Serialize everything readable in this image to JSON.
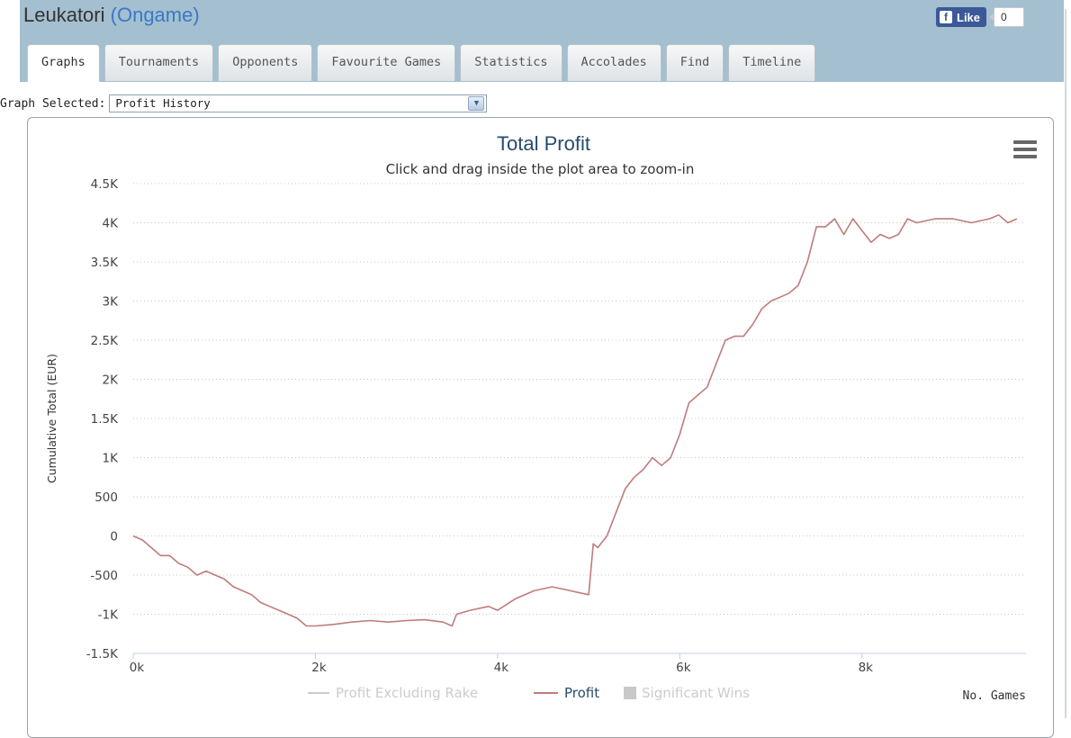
{
  "header": {
    "player": "Leukatori",
    "network": "(Ongame)",
    "like_label": "Like",
    "like_count": "0"
  },
  "tabs": [
    {
      "label": "Graphs",
      "active": true
    },
    {
      "label": "Tournaments"
    },
    {
      "label": "Opponents"
    },
    {
      "label": "Favourite Games"
    },
    {
      "label": "Statistics"
    },
    {
      "label": "Accolades"
    },
    {
      "label": "Find"
    },
    {
      "label": "Timeline"
    }
  ],
  "graph_select": {
    "label": "Graph Selected:",
    "value": "Profit History"
  },
  "colors": {
    "profit": "#bf7b7b",
    "profit_excl_rake": "#cccccc",
    "significant_wins": "#c8c8c8",
    "title": "#274b6d",
    "band": "#a4bfcf"
  },
  "icons": {
    "menu": "hamburger-menu-icon",
    "facebook": "facebook-f-icon",
    "dropdown": "chevron-down-icon"
  },
  "chart_data": {
    "type": "line",
    "title": "Total Profit",
    "subtitle": "Click and drag inside the plot area to zoom-in",
    "xlabel": "No. Games",
    "ylabel": "Cumulative Total (EUR)",
    "xlim": [
      0,
      9800
    ],
    "ylim": [
      -1500,
      4500
    ],
    "x_ticks": [
      "0k",
      "2k",
      "4k",
      "6k",
      "8k"
    ],
    "y_ticks": [
      "4.5K",
      "4K",
      "3.5K",
      "3K",
      "2.5K",
      "2K",
      "1.5K",
      "1K",
      "500",
      "0",
      "-500",
      "-1K",
      "-1.5K"
    ],
    "grid": true,
    "legend_position": "bottom",
    "legend": [
      {
        "name": "Profit Excluding Rake",
        "visible": false
      },
      {
        "name": "Profit",
        "visible": true
      },
      {
        "name": "Significant Wins",
        "visible": false
      }
    ],
    "series": [
      {
        "name": "Profit",
        "x": [
          0,
          100,
          200,
          300,
          400,
          500,
          600,
          700,
          800,
          900,
          1000,
          1100,
          1200,
          1300,
          1400,
          1500,
          1600,
          1700,
          1800,
          1900,
          2000,
          2200,
          2400,
          2600,
          2800,
          3000,
          3200,
          3400,
          3500,
          3550,
          3700,
          3900,
          4000,
          4200,
          4400,
          4600,
          4800,
          5000,
          5050,
          5100,
          5200,
          5300,
          5400,
          5500,
          5600,
          5700,
          5800,
          5900,
          6000,
          6100,
          6200,
          6300,
          6400,
          6500,
          6600,
          6700,
          6800,
          6900,
          7000,
          7100,
          7200,
          7300,
          7400,
          7500,
          7600,
          7650,
          7700,
          7800,
          7900,
          8000,
          8100,
          8200,
          8300,
          8400,
          8500,
          8600,
          8800,
          9000,
          9200,
          9400,
          9500,
          9600,
          9700
        ],
        "y": [
          0,
          -50,
          -150,
          -250,
          -250,
          -350,
          -400,
          -500,
          -450,
          -500,
          -550,
          -650,
          -700,
          -750,
          -850,
          -900,
          -950,
          -1000,
          -1050,
          -1150,
          -1150,
          -1130,
          -1100,
          -1080,
          -1100,
          -1080,
          -1070,
          -1100,
          -1150,
          -1000,
          -950,
          -900,
          -950,
          -800,
          -700,
          -650,
          -700,
          -750,
          -100,
          -150,
          0,
          300,
          600,
          750,
          850,
          1000,
          900,
          1000,
          1300,
          1700,
          1800,
          1900,
          2200,
          2500,
          2550,
          2550,
          2700,
          2900,
          3000,
          3050,
          3100,
          3200,
          3500,
          3950,
          3950,
          4000,
          4050,
          3850,
          4050,
          3900,
          3750,
          3850,
          3800,
          3850,
          4050,
          4000,
          4050,
          4050,
          4000,
          4050,
          4100,
          4000,
          4050
        ]
      }
    ]
  }
}
